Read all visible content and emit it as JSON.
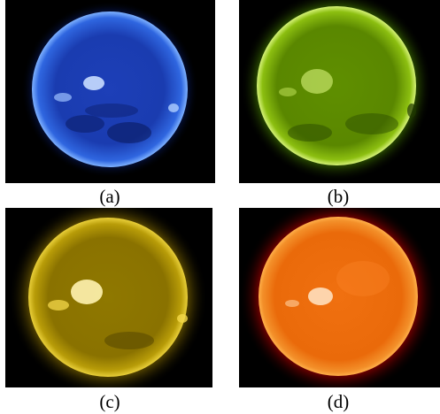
{
  "panels": [
    {
      "label": "(a)",
      "colors": {
        "background": "#000000",
        "disk": "#1a3fbf",
        "disk_edge": "#4a8cff",
        "corona": "#0b1f6e"
      }
    },
    {
      "label": "(b)",
      "colors": {
        "background": "#000000",
        "disk": "#5a8a00",
        "disk_edge": "#b7e23a",
        "corona": "#2e5400"
      }
    },
    {
      "label": "(c)",
      "colors": {
        "background": "#000000",
        "disk": "#8a7300",
        "disk_edge": "#d8bd1a",
        "corona": "#5a4a00"
      }
    },
    {
      "label": "(d)",
      "colors": {
        "background": "#000000",
        "disk": "#e8620a",
        "disk_edge": "#ff9a30",
        "corona": "#7a0000"
      }
    }
  ]
}
